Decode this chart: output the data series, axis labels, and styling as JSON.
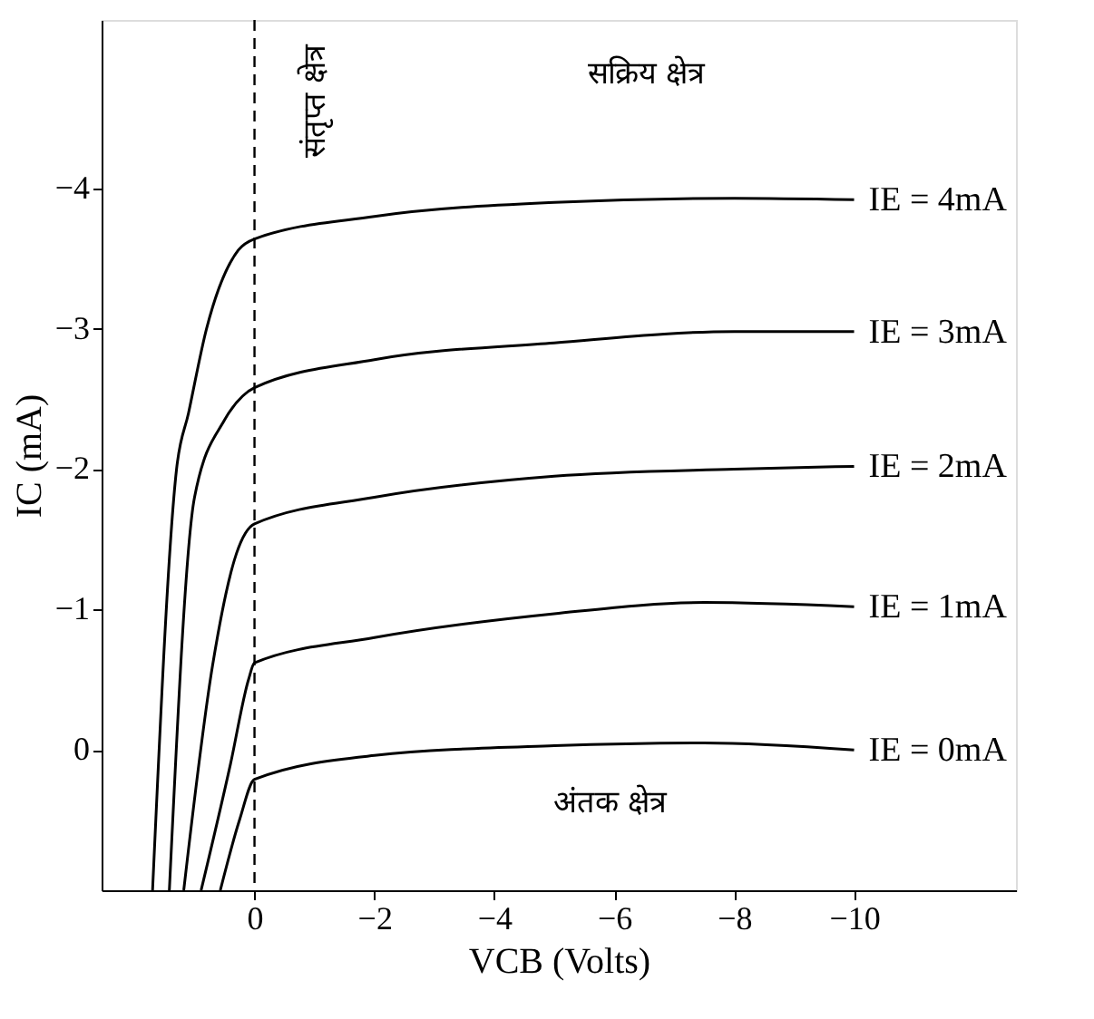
{
  "chart_data": {
    "type": "line",
    "xlabel": "VCB (Volts)",
    "ylabel": "IC (mA)",
    "xlim": [
      2.55,
      -12.7
    ],
    "ylim": [
      1.0,
      -5.2
    ],
    "xticks": [
      0,
      -2,
      -4,
      -6,
      -8,
      -10
    ],
    "yticks": [
      0,
      -1,
      -2,
      -3,
      -4
    ],
    "grid": false,
    "legend": false,
    "marker": "none",
    "line_style": "solid",
    "series": [
      {
        "name": "IE = 4mA",
        "color": "#000000",
        "x": [
          1.7,
          1.3,
          1.1,
          0.8,
          0.27,
          0,
          -2,
          -5,
          -8,
          -10
        ],
        "values": [
          1.0,
          -2.0,
          -2.4,
          -3.0,
          -3.56,
          -3.64,
          -3.8,
          -3.9,
          -3.93,
          -3.92
        ]
      },
      {
        "name": "IE = 3mA",
        "color": "#000000",
        "x": [
          1.42,
          1.0,
          0.5,
          0.2,
          0,
          -2,
          -5,
          -8,
          -10
        ],
        "values": [
          1.0,
          -1.8,
          -2.35,
          -2.52,
          -2.58,
          -2.78,
          -2.9,
          -2.98,
          -2.98
        ]
      },
      {
        "name": "IE = 2mA",
        "color": "#000000",
        "x": [
          1.18,
          0.7,
          0.3,
          0,
          -2,
          -5,
          -8,
          -10
        ],
        "values": [
          1.0,
          -0.6,
          -1.4,
          -1.61,
          -1.8,
          -1.95,
          -2.0,
          -2.02
        ]
      },
      {
        "name": "IE = 1mA",
        "color": "#000000",
        "x": [
          0.89,
          0.4,
          0.1,
          0,
          -2,
          -5,
          -7.5,
          -10
        ],
        "values": [
          1.0,
          0.1,
          -0.5,
          -0.62,
          -0.8,
          -0.97,
          -1.05,
          -1.02
        ]
      },
      {
        "name": "IE = 0mA",
        "color": "#000000",
        "x": [
          0.57,
          0.25,
          0,
          -2,
          -5,
          -7.5,
          -10
        ],
        "values": [
          1.0,
          0.5,
          0.21,
          0.04,
          -0.03,
          -0.05,
          0.0
        ]
      }
    ],
    "ref_lines": [
      {
        "axis": "x",
        "value": 0,
        "line_style": "dashed",
        "color": "#000000"
      }
    ],
    "annotations": [
      "संतृप्त क्षेत्र",
      "सक्रिय क्षेत्र",
      "अंतक क्षेत्र"
    ]
  }
}
